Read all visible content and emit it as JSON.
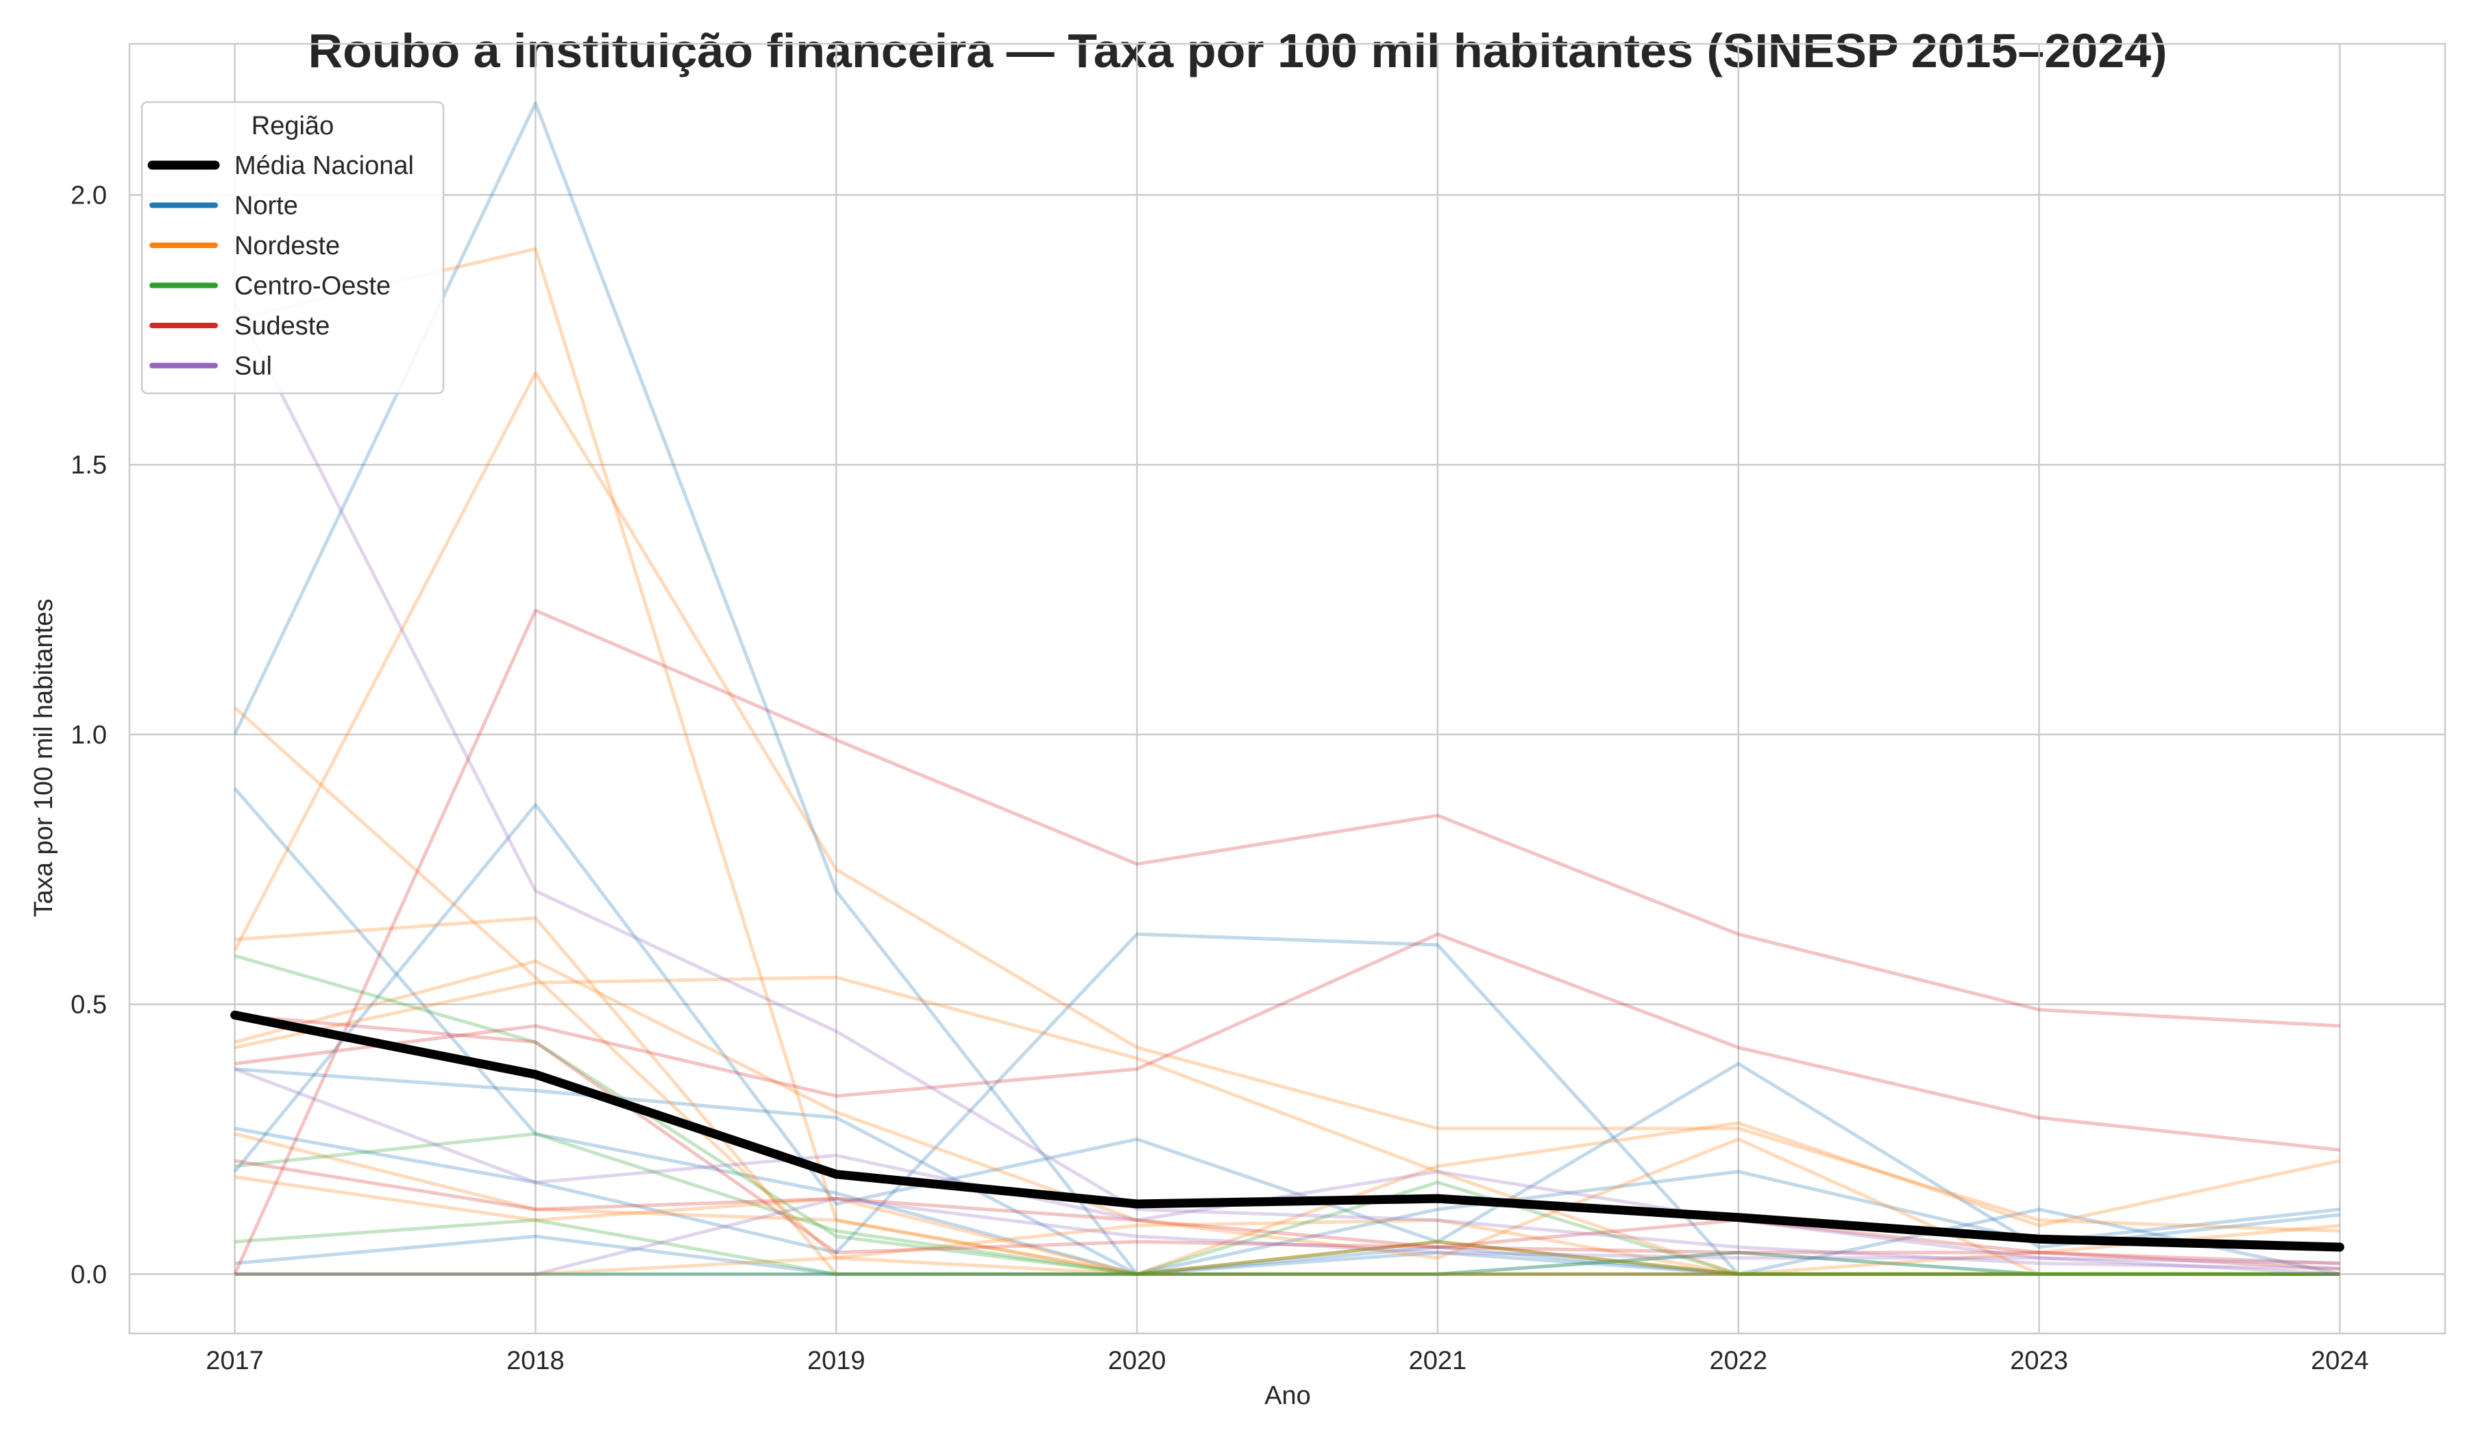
{
  "chart_data": {
    "type": "line",
    "title": "Roubo a instituição financeira — Taxa por 100 mil habitantes (SINESP 2015–2024)",
    "xlabel": "Ano",
    "ylabel": "Taxa por 100 mil habitantes",
    "x": [
      2017,
      2018,
      2019,
      2020,
      2021,
      2022,
      2023,
      2024
    ],
    "x_tick_labels": [
      "2017",
      "2018",
      "2019",
      "2020",
      "2021",
      "2022",
      "2023",
      "2024"
    ],
    "xlim": [
      2016.65,
      2024.35
    ],
    "ylim": [
      -0.11,
      2.28
    ],
    "y_ticks": [
      0.0,
      0.5,
      1.0,
      1.5,
      2.0
    ],
    "y_tick_labels": [
      "0.0",
      "0.5",
      "1.0",
      "1.5",
      "2.0"
    ],
    "grid": true,
    "legend": {
      "title": "Região",
      "placement": "top-left",
      "entries": [
        {
          "label": "Média Nacional",
          "color": "#000000"
        },
        {
          "label": "Norte",
          "color": "#1f77b4"
        },
        {
          "label": "Nordeste",
          "color": "#ff7f0e"
        },
        {
          "label": "Centro-Oeste",
          "color": "#2ca02c"
        },
        {
          "label": "Sudeste",
          "color": "#d62728"
        },
        {
          "label": "Sul",
          "color": "#9467bd"
        }
      ]
    },
    "region_colors": {
      "Norte": "#1f77b4",
      "Nordeste": "#ff7f0e",
      "Centro-Oeste": "#2ca02c",
      "Sudeste": "#d62728",
      "Sul": "#9467bd"
    },
    "national_average": {
      "name": "Média Nacional",
      "color": "#000000",
      "values": [
        0.48,
        0.37,
        0.185,
        0.13,
        0.14,
        0.105,
        0.065,
        0.05
      ]
    },
    "series": [
      {
        "region": "Norte",
        "values": [
          1.0,
          2.17,
          0.71,
          0.0,
          0.05,
          0.0,
          0.12,
          0.0
        ]
      },
      {
        "region": "Norte",
        "values": [
          0.9,
          0.26,
          0.15,
          0.0,
          0.04,
          0.0,
          0.0,
          0.0
        ]
      },
      {
        "region": "Norte",
        "values": [
          0.19,
          0.87,
          0.13,
          0.25,
          0.06,
          0.39,
          0.05,
          0.11
        ]
      },
      {
        "region": "Norte",
        "values": [
          0.38,
          0.34,
          0.29,
          0.0,
          0.0,
          0.0,
          0.0,
          0.0
        ]
      },
      {
        "region": "Norte",
        "values": [
          0.27,
          0.17,
          0.04,
          0.63,
          0.61,
          0.0,
          0.0,
          0.0
        ]
      },
      {
        "region": "Norte",
        "values": [
          0.02,
          0.07,
          0.0,
          0.0,
          0.12,
          0.19,
          0.06,
          0.12
        ]
      },
      {
        "region": "Norte",
        "values": [
          0.0,
          0.0,
          0.0,
          0.0,
          0.0,
          0.04,
          0.0,
          0.0
        ]
      },
      {
        "region": "Nordeste",
        "values": [
          1.77,
          1.9,
          0.1,
          0.0,
          0.0,
          0.0,
          0.0,
          0.0
        ]
      },
      {
        "region": "Nordeste",
        "values": [
          1.05,
          0.55,
          0.03,
          0.0,
          0.06,
          0.0,
          0.0,
          0.0
        ]
      },
      {
        "region": "Nordeste",
        "values": [
          0.62,
          0.66,
          0.0,
          0.0,
          0.2,
          0.28,
          0.09,
          0.21
        ]
      },
      {
        "region": "Nordeste",
        "values": [
          0.6,
          1.67,
          0.75,
          0.42,
          0.27,
          0.27,
          0.1,
          0.08
        ]
      },
      {
        "region": "Nordeste",
        "values": [
          0.43,
          0.58,
          0.3,
          0.1,
          0.03,
          0.25,
          0.0,
          0.0
        ]
      },
      {
        "region": "Nordeste",
        "values": [
          0.42,
          0.54,
          0.55,
          0.4,
          0.19,
          0.0,
          0.0,
          0.0
        ]
      },
      {
        "region": "Nordeste",
        "values": [
          0.26,
          0.12,
          0.1,
          0.0,
          0.0,
          0.0,
          0.0,
          0.0
        ]
      },
      {
        "region": "Nordeste",
        "values": [
          0.18,
          0.1,
          0.14,
          0.0,
          0.06,
          0.0,
          0.04,
          0.09
        ]
      },
      {
        "region": "Nordeste",
        "values": [
          0.0,
          0.0,
          0.03,
          0.09,
          0.1,
          0.0,
          0.0,
          0.0
        ]
      },
      {
        "region": "Centro-Oeste",
        "values": [
          0.59,
          0.43,
          0.07,
          0.0,
          0.17,
          0.0,
          0.0,
          0.0
        ]
      },
      {
        "region": "Centro-Oeste",
        "values": [
          0.2,
          0.26,
          0.08,
          0.0,
          0.0,
          0.04,
          0.0,
          0.0
        ]
      },
      {
        "region": "Centro-Oeste",
        "values": [
          0.06,
          0.1,
          0.0,
          0.0,
          0.06,
          0.0,
          0.0,
          0.0
        ]
      },
      {
        "region": "Centro-Oeste",
        "values": [
          0.0,
          0.0,
          0.0,
          0.0,
          0.0,
          0.0,
          0.0,
          0.0
        ]
      },
      {
        "region": "Sudeste",
        "values": [
          0.0,
          1.23,
          0.99,
          0.76,
          0.85,
          0.63,
          0.49,
          0.46
        ]
      },
      {
        "region": "Sudeste",
        "values": [
          0.39,
          0.46,
          0.33,
          0.38,
          0.63,
          0.42,
          0.29,
          0.23
        ]
      },
      {
        "region": "Sudeste",
        "values": [
          0.21,
          0.12,
          0.14,
          0.1,
          0.05,
          0.04,
          0.04,
          0.02
        ]
      },
      {
        "region": "Sudeste",
        "values": [
          0.48,
          0.43,
          0.04,
          0.06,
          0.05,
          0.1,
          0.04,
          0.01
        ]
      },
      {
        "region": "Sul",
        "values": [
          1.8,
          0.71,
          0.45,
          0.12,
          0.1,
          0.05,
          0.02,
          0.01
        ]
      },
      {
        "region": "Sul",
        "values": [
          0.38,
          0.17,
          0.22,
          0.1,
          0.19,
          0.1,
          0.03,
          0.02
        ]
      },
      {
        "region": "Sul",
        "values": [
          0.0,
          0.0,
          0.14,
          0.07,
          0.04,
          0.03,
          0.03,
          0.0
        ]
      }
    ]
  }
}
